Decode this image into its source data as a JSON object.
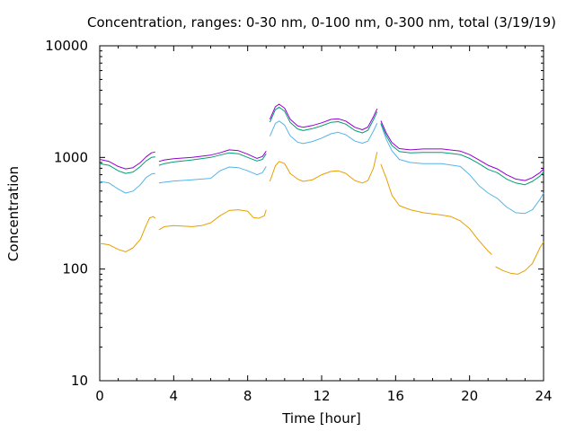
{
  "chart_data": {
    "type": "line",
    "title": "Concentration, ranges: 0-30 nm, 0-100 nm, 0-300 nm, total (3/19/19)",
    "xlabel": "Time [hour]",
    "ylabel": "Concentration",
    "xlim": [
      0,
      24
    ],
    "ylim": [
      10,
      10000
    ],
    "yscale": "log",
    "grid": false,
    "legend": "none",
    "x_ticks": [
      "0",
      "4",
      "8",
      "12",
      "16",
      "20",
      "24"
    ],
    "y_ticks": [
      "10",
      "100",
      "1000",
      "10000"
    ],
    "series": [
      {
        "color": "#e69f00",
        "segments": [
          [
            [
              0,
              170
            ],
            [
              0.5,
              165
            ],
            [
              1,
              150
            ],
            [
              1.4,
              143
            ],
            [
              1.8,
              155
            ],
            [
              2.2,
              185
            ],
            [
              2.5,
              245
            ],
            [
              2.7,
              288
            ],
            [
              2.9,
              295
            ],
            [
              3.0,
              285
            ]
          ],
          [
            [
              3.2,
              225
            ],
            [
              3.5,
              240
            ],
            [
              4,
              245
            ],
            [
              5,
              240
            ],
            [
              5.5,
              245
            ],
            [
              6,
              260
            ],
            [
              6.5,
              300
            ],
            [
              7,
              335
            ],
            [
              7.5,
              340
            ],
            [
              8,
              330
            ],
            [
              8.3,
              290
            ],
            [
              8.6,
              285
            ],
            [
              8.9,
              300
            ],
            [
              9.0,
              340
            ]
          ],
          [
            [
              9.2,
              610
            ],
            [
              9.5,
              840
            ],
            [
              9.7,
              920
            ],
            [
              10,
              880
            ],
            [
              10.3,
              720
            ],
            [
              10.7,
              640
            ],
            [
              11,
              610
            ],
            [
              11.5,
              630
            ],
            [
              12,
              700
            ],
            [
              12.5,
              750
            ],
            [
              12.9,
              760
            ],
            [
              13.3,
              720
            ],
            [
              13.8,
              620
            ],
            [
              14.2,
              590
            ],
            [
              14.5,
              620
            ],
            [
              14.8,
              800
            ],
            [
              15.0,
              1120
            ]
          ],
          [
            [
              15.2,
              870
            ],
            [
              15.5,
              650
            ],
            [
              15.8,
              460
            ],
            [
              16.2,
              370
            ],
            [
              16.8,
              340
            ],
            [
              17.5,
              320
            ],
            [
              18.5,
              305
            ],
            [
              19,
              295
            ],
            [
              19.5,
              270
            ],
            [
              20,
              230
            ],
            [
              20.5,
              180
            ],
            [
              21,
              145
            ],
            [
              21.2,
              135
            ]
          ],
          [
            [
              21.4,
              105
            ],
            [
              21.8,
              97
            ],
            [
              22.2,
              92
            ],
            [
              22.6,
              90
            ],
            [
              23,
              97
            ],
            [
              23.4,
              112
            ],
            [
              23.8,
              155
            ],
            [
              24,
              175
            ]
          ]
        ]
      },
      {
        "color": "#56b4e9",
        "segments": [
          [
            [
              0,
              610
            ],
            [
              0.5,
              590
            ],
            [
              1,
              520
            ],
            [
              1.4,
              480
            ],
            [
              1.8,
              500
            ],
            [
              2.2,
              570
            ],
            [
              2.5,
              660
            ],
            [
              2.8,
              710
            ],
            [
              3.0,
              720
            ]
          ],
          [
            [
              3.2,
              590
            ],
            [
              3.5,
              600
            ],
            [
              4,
              615
            ],
            [
              5,
              630
            ],
            [
              6,
              650
            ],
            [
              6.5,
              760
            ],
            [
              7,
              820
            ],
            [
              7.5,
              810
            ],
            [
              8,
              760
            ],
            [
              8.5,
              700
            ],
            [
              8.8,
              730
            ],
            [
              9.0,
              830
            ]
          ],
          [
            [
              9.2,
              1550
            ],
            [
              9.5,
              2020
            ],
            [
              9.7,
              2120
            ],
            [
              10,
              1950
            ],
            [
              10.3,
              1560
            ],
            [
              10.7,
              1370
            ],
            [
              11,
              1330
            ],
            [
              11.5,
              1390
            ],
            [
              12,
              1490
            ],
            [
              12.5,
              1630
            ],
            [
              12.9,
              1680
            ],
            [
              13.3,
              1600
            ],
            [
              13.8,
              1400
            ],
            [
              14.2,
              1340
            ],
            [
              14.5,
              1400
            ],
            [
              14.8,
              1720
            ],
            [
              15.0,
              2030
            ]
          ],
          [
            [
              15.2,
              2000
            ],
            [
              15.5,
              1450
            ],
            [
              15.8,
              1150
            ],
            [
              16.2,
              960
            ],
            [
              16.8,
              900
            ],
            [
              17.5,
              880
            ],
            [
              18.5,
              880
            ],
            [
              19.5,
              830
            ],
            [
              20,
              700
            ],
            [
              20.5,
              560
            ],
            [
              21,
              480
            ],
            [
              21.5,
              430
            ],
            [
              22,
              360
            ],
            [
              22.5,
              320
            ],
            [
              23,
              315
            ],
            [
              23.4,
              340
            ],
            [
              23.8,
              420
            ],
            [
              24,
              480
            ]
          ]
        ]
      },
      {
        "color": "#009e73",
        "segments": [
          [
            [
              0,
              880
            ],
            [
              0.5,
              850
            ],
            [
              1,
              760
            ],
            [
              1.4,
              720
            ],
            [
              1.8,
              740
            ],
            [
              2.2,
              830
            ],
            [
              2.5,
              930
            ],
            [
              2.8,
              1000
            ],
            [
              3.0,
              1010
            ]
          ],
          [
            [
              3.2,
              850
            ],
            [
              3.5,
              880
            ],
            [
              4,
              910
            ],
            [
              5,
              950
            ],
            [
              6,
              1000
            ],
            [
              6.5,
              1050
            ],
            [
              7,
              1100
            ],
            [
              7.5,
              1080
            ],
            [
              8,
              1000
            ],
            [
              8.5,
              930
            ],
            [
              8.8,
              960
            ],
            [
              9.0,
              1080
            ]
          ],
          [
            [
              9.2,
              2070
            ],
            [
              9.5,
              2680
            ],
            [
              9.7,
              2820
            ],
            [
              10,
              2590
            ],
            [
              10.3,
              2060
            ],
            [
              10.7,
              1800
            ],
            [
              11,
              1740
            ],
            [
              11.5,
              1810
            ],
            [
              12,
              1920
            ],
            [
              12.5,
              2060
            ],
            [
              12.9,
              2090
            ],
            [
              13.3,
              1990
            ],
            [
              13.8,
              1740
            ],
            [
              14.2,
              1660
            ],
            [
              14.5,
              1750
            ],
            [
              14.8,
              2170
            ],
            [
              15.0,
              2570
            ]
          ],
          [
            [
              15.2,
              2020
            ],
            [
              15.5,
              1560
            ],
            [
              15.8,
              1280
            ],
            [
              16.2,
              1130
            ],
            [
              16.8,
              1100
            ],
            [
              17.5,
              1110
            ],
            [
              18.5,
              1110
            ],
            [
              19.5,
              1060
            ],
            [
              20,
              980
            ],
            [
              20.5,
              880
            ],
            [
              21,
              780
            ],
            [
              21.5,
              730
            ],
            [
              22,
              640
            ],
            [
              22.5,
              590
            ],
            [
              23,
              570
            ],
            [
              23.4,
              610
            ],
            [
              23.8,
              680
            ],
            [
              24,
              740
            ]
          ]
        ]
      },
      {
        "color": "#9400d3",
        "segments": [
          [
            [
              0,
              960
            ],
            [
              0.5,
              920
            ],
            [
              1,
              830
            ],
            [
              1.4,
              790
            ],
            [
              1.8,
              810
            ],
            [
              2.2,
              900
            ],
            [
              2.5,
              1010
            ],
            [
              2.8,
              1100
            ],
            [
              3.0,
              1120
            ]
          ],
          [
            [
              3.2,
              920
            ],
            [
              3.5,
              950
            ],
            [
              4,
              975
            ],
            [
              5,
              1000
            ],
            [
              6,
              1050
            ],
            [
              6.5,
              1100
            ],
            [
              7,
              1170
            ],
            [
              7.5,
              1150
            ],
            [
              8,
              1070
            ],
            [
              8.5,
              980
            ],
            [
              8.8,
              1020
            ],
            [
              9.0,
              1140
            ]
          ],
          [
            [
              9.2,
              2200
            ],
            [
              9.5,
              2850
            ],
            [
              9.7,
              3000
            ],
            [
              10,
              2760
            ],
            [
              10.3,
              2200
            ],
            [
              10.7,
              1920
            ],
            [
              11,
              1860
            ],
            [
              11.5,
              1930
            ],
            [
              12,
              2040
            ],
            [
              12.5,
              2190
            ],
            [
              12.9,
              2220
            ],
            [
              13.3,
              2120
            ],
            [
              13.8,
              1860
            ],
            [
              14.2,
              1770
            ],
            [
              14.5,
              1870
            ],
            [
              14.8,
              2310
            ],
            [
              15.0,
              2730
            ]
          ],
          [
            [
              15.2,
              2130
            ],
            [
              15.5,
              1650
            ],
            [
              15.8,
              1360
            ],
            [
              16.2,
              1200
            ],
            [
              16.8,
              1170
            ],
            [
              17.5,
              1190
            ],
            [
              18.5,
              1190
            ],
            [
              19.5,
              1140
            ],
            [
              20,
              1060
            ],
            [
              20.5,
              950
            ],
            [
              21,
              850
            ],
            [
              21.5,
              790
            ],
            [
              22,
              700
            ],
            [
              22.5,
              640
            ],
            [
              23,
              620
            ],
            [
              23.4,
              660
            ],
            [
              23.8,
              730
            ],
            [
              24,
              790
            ]
          ]
        ]
      }
    ]
  }
}
